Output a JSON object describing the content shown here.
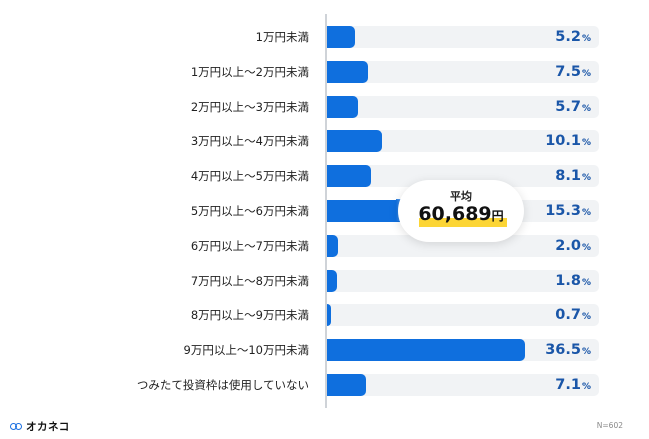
{
  "chart_data": {
    "type": "bar",
    "orientation": "horizontal",
    "categories": [
      "1万円未満",
      "1万円以上〜2万円未満",
      "2万円以上〜3万円未満",
      "3万円以上〜4万円未満",
      "4万円以上〜5万円未満",
      "5万円以上〜6万円未満",
      "6万円以上〜7万円未満",
      "7万円以上〜8万円未満",
      "8万円以上〜9万円未満",
      "9万円以上〜10万円未満",
      "つみたて投資枠は使用していない"
    ],
    "values": [
      5.2,
      7.5,
      5.7,
      10.1,
      8.1,
      15.3,
      2.0,
      1.8,
      0.7,
      36.5,
      7.1
    ],
    "value_labels": [
      "5.2",
      "7.5",
      "5.7",
      "10.1",
      "8.1",
      "15.3",
      "2.0",
      "1.8",
      "0.7",
      "36.5",
      "7.1"
    ],
    "unit": "%",
    "xlim": [
      0,
      50
    ],
    "grid": false,
    "legend": null,
    "annotation": {
      "title": "平均",
      "value": "60,689",
      "unit": "円"
    },
    "sample_size": "N=602",
    "colors": {
      "bar": "#0f6fde",
      "track": "#f1f3f5",
      "value_text": "#1a56a8",
      "highlight": "#fcd535"
    }
  },
  "footer": {
    "brand": "オカネコ",
    "sample_size": "N=602"
  }
}
